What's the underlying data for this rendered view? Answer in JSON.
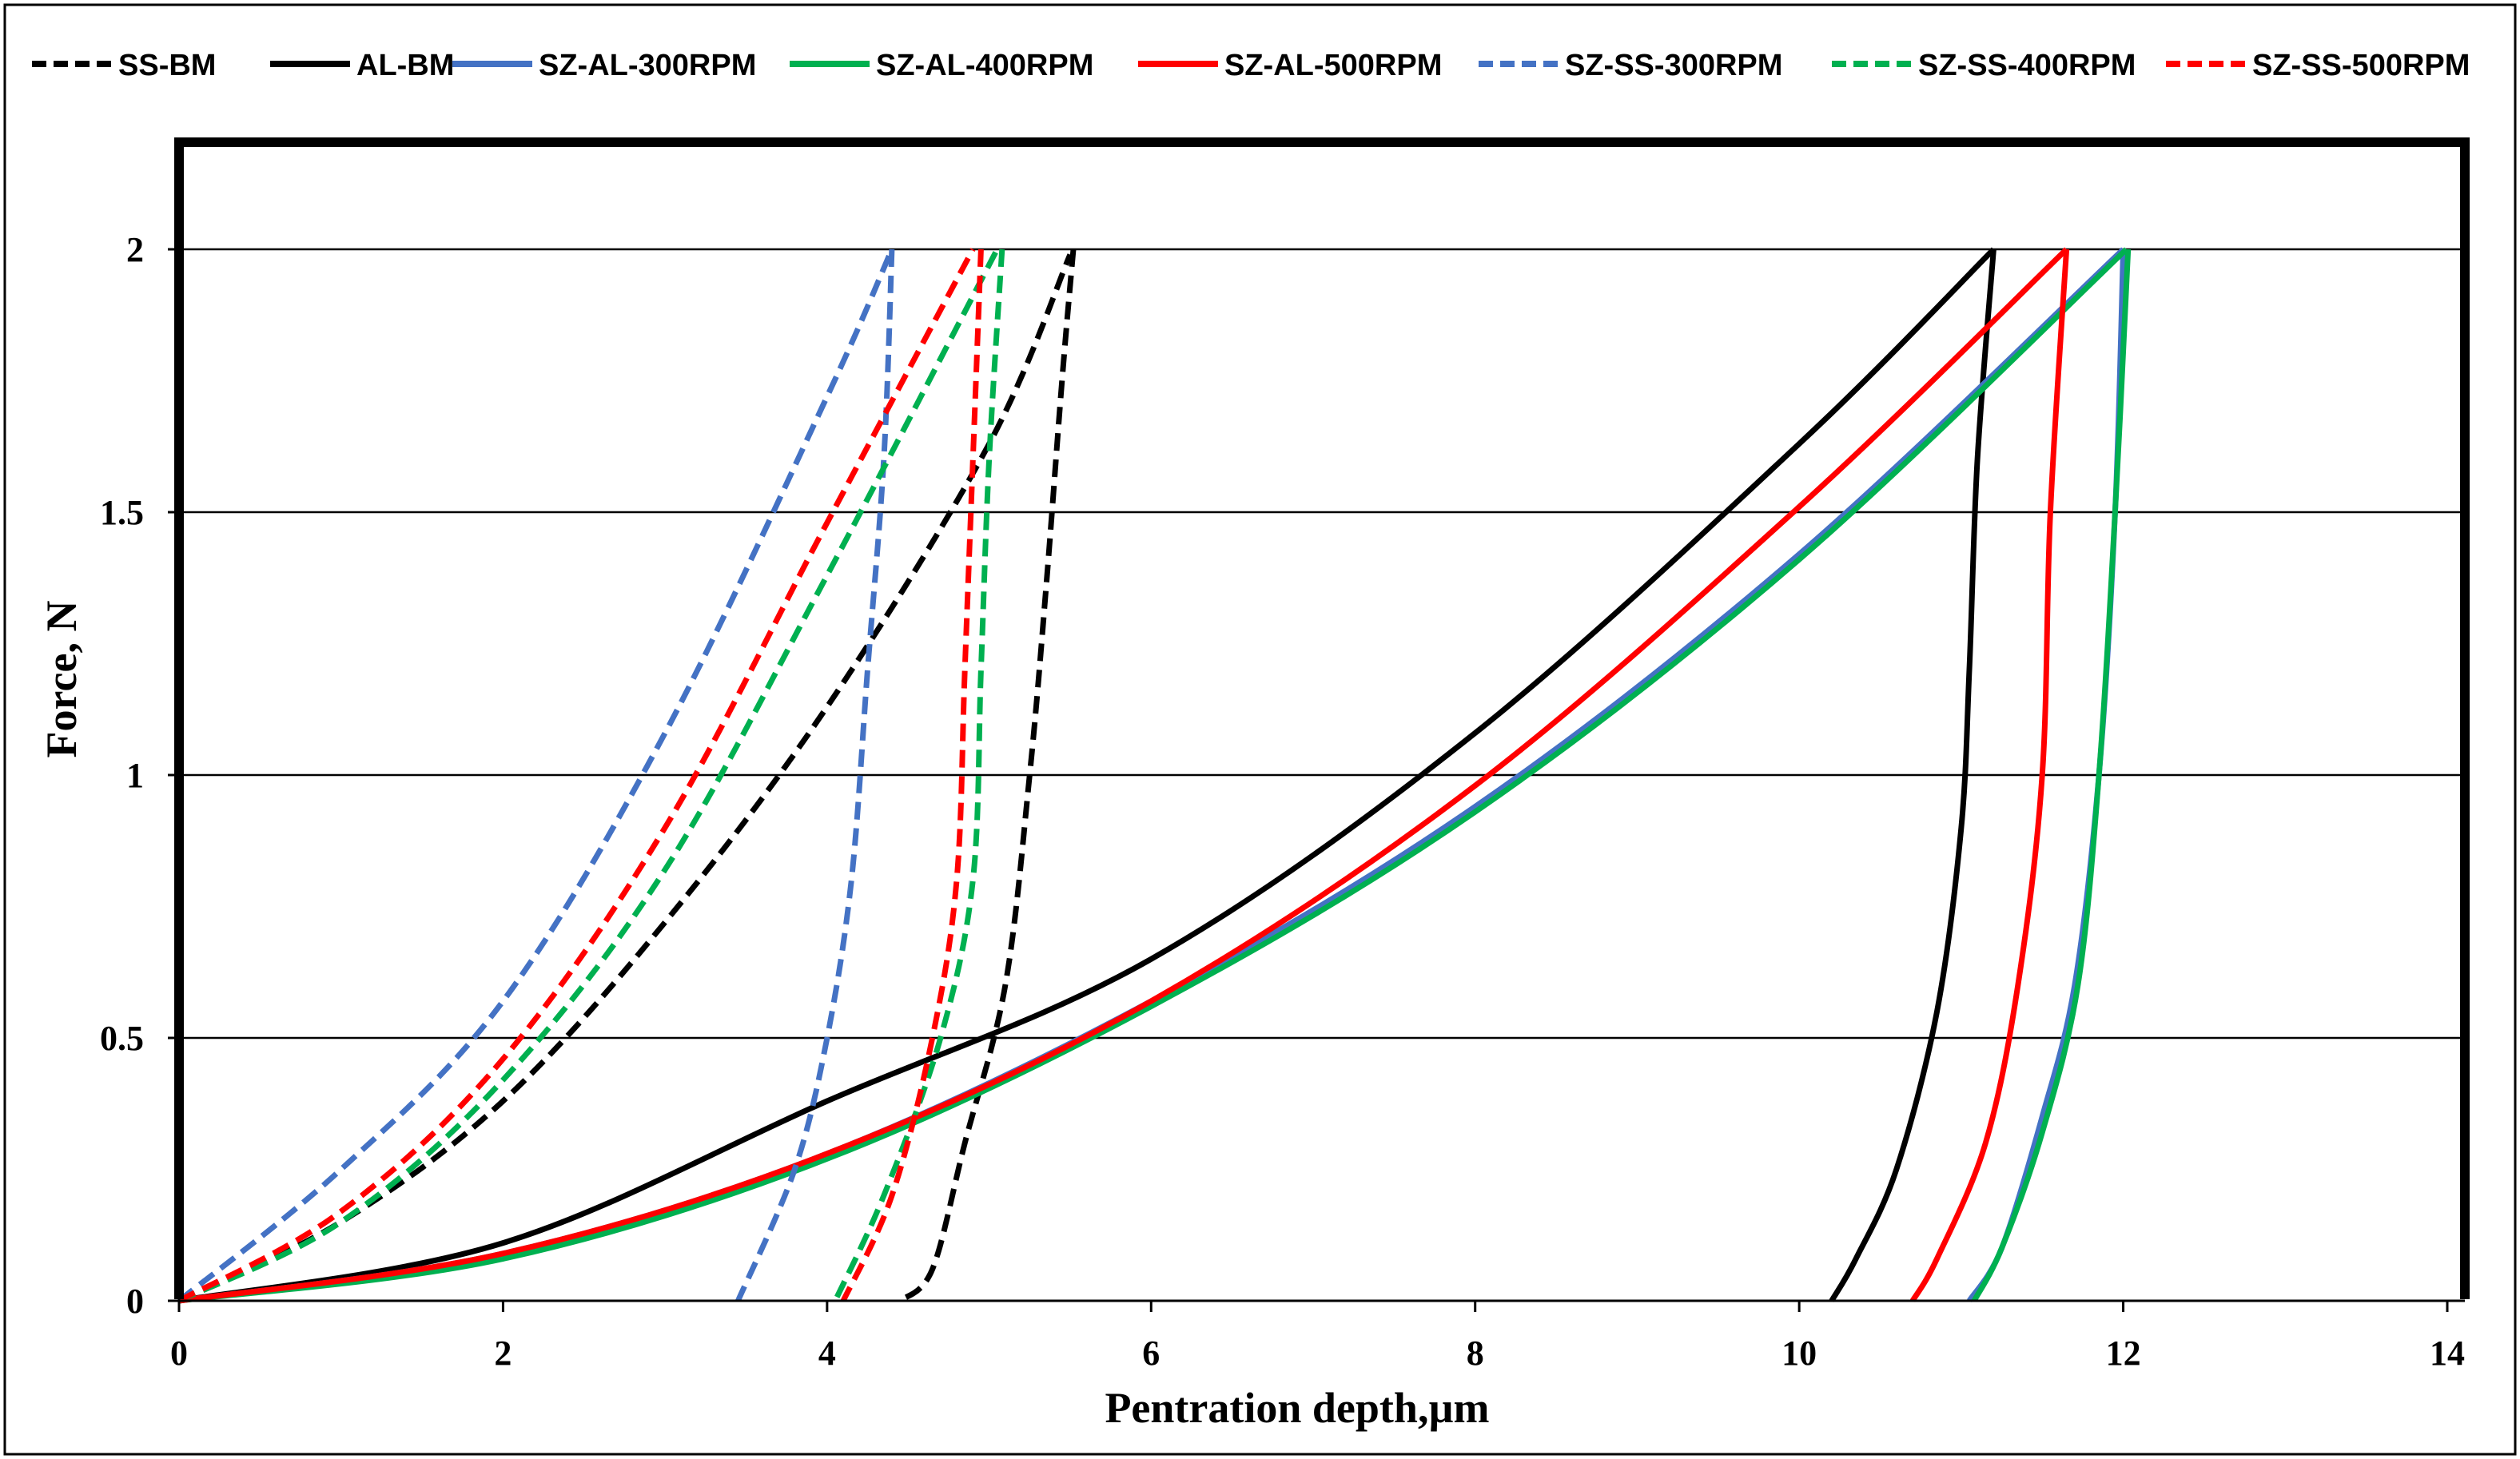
{
  "chart_data": {
    "type": "line",
    "title": "",
    "xlabel": "Pentration depth,µm",
    "ylabel": "Force, N",
    "xlim": [
      0,
      14
    ],
    "ylim": [
      0,
      2.2
    ],
    "x_ticks": [
      0,
      2,
      4,
      6,
      8,
      10,
      12,
      14
    ],
    "x_tick_labels": [
      "0",
      "2",
      "4",
      "6",
      "8",
      "10",
      "12",
      "14"
    ],
    "y_ticks": [
      0,
      0.5,
      1,
      1.5,
      2
    ],
    "y_tick_labels": [
      "0",
      "0.5",
      "1",
      "1.5",
      "2"
    ],
    "gridlines": "horizontal",
    "legend_position": "top",
    "series": [
      {
        "name": "SS-BM",
        "color": "#000000",
        "dashed": true,
        "loading": [
          [
            0,
            0
          ],
          [
            1,
            0.15
          ],
          [
            2,
            0.38
          ],
          [
            3,
            0.72
          ],
          [
            4,
            1.13
          ],
          [
            5,
            1.63
          ],
          [
            5.5,
            1.99
          ]
        ],
        "unloading": [
          [
            5.52,
            2
          ],
          [
            5.45,
            1.75
          ],
          [
            5.35,
            1.35
          ],
          [
            5.25,
            1.0
          ],
          [
            5.1,
            0.6
          ],
          [
            4.85,
            0.3
          ],
          [
            4.65,
            0.06
          ],
          [
            4.45,
            0
          ]
        ]
      },
      {
        "name": "AL-BM",
        "color": "#000000",
        "dashed": false,
        "loading": [
          [
            0,
            0
          ],
          [
            2,
            0.11
          ],
          [
            4,
            0.38
          ],
          [
            6,
            0.65
          ],
          [
            8,
            1.08
          ],
          [
            10,
            1.63
          ],
          [
            11.2,
            2.0
          ]
        ],
        "unloading": [
          [
            11.2,
            2
          ],
          [
            11.1,
            1.6
          ],
          [
            11.05,
            1.2
          ],
          [
            11.0,
            0.9
          ],
          [
            10.85,
            0.55
          ],
          [
            10.6,
            0.25
          ],
          [
            10.35,
            0.08
          ],
          [
            10.2,
            0
          ]
        ]
      },
      {
        "name": "SZ-AL-300RPM",
        "color": "#4472C4",
        "dashed": false,
        "loading": [
          [
            0,
            0
          ],
          [
            2,
            0.09
          ],
          [
            4,
            0.28
          ],
          [
            6,
            0.57
          ],
          [
            8,
            0.94
          ],
          [
            10,
            1.42
          ],
          [
            12,
            2.0
          ]
        ],
        "unloading": [
          [
            12.0,
            2
          ],
          [
            11.95,
            1.5
          ],
          [
            11.85,
            1.0
          ],
          [
            11.7,
            0.6
          ],
          [
            11.5,
            0.35
          ],
          [
            11.25,
            0.1
          ],
          [
            11.05,
            0
          ]
        ]
      },
      {
        "name": "SZ-AL-400RPM",
        "color": "#00B050",
        "dashed": false,
        "loading": [
          [
            0,
            0
          ],
          [
            2,
            0.08
          ],
          [
            4,
            0.27
          ],
          [
            6,
            0.56
          ],
          [
            8,
            0.93
          ],
          [
            10,
            1.41
          ],
          [
            12.02,
            2.0
          ]
        ],
        "unloading": [
          [
            12.03,
            2
          ],
          [
            11.95,
            1.5
          ],
          [
            11.85,
            1.0
          ],
          [
            11.72,
            0.6
          ],
          [
            11.5,
            0.32
          ],
          [
            11.25,
            0.1
          ],
          [
            11.08,
            0
          ]
        ]
      },
      {
        "name": "SZ-AL-500RPM",
        "color": "#FF0000",
        "dashed": false,
        "loading": [
          [
            0,
            0
          ],
          [
            2,
            0.09
          ],
          [
            4,
            0.28
          ],
          [
            6,
            0.57
          ],
          [
            8,
            0.98
          ],
          [
            10,
            1.51
          ],
          [
            11.65,
            2.0
          ]
        ],
        "unloading": [
          [
            11.65,
            2
          ],
          [
            11.55,
            1.5
          ],
          [
            11.5,
            1.0
          ],
          [
            11.35,
            0.6
          ],
          [
            11.15,
            0.3
          ],
          [
            10.85,
            0.08
          ],
          [
            10.7,
            0
          ]
        ]
      },
      {
        "name": "SZ-SS-300RPM",
        "color": "#4472C4",
        "dashed": true,
        "loading": [
          [
            0,
            0
          ],
          [
            1,
            0.25
          ],
          [
            2,
            0.57
          ],
          [
            3,
            1.08
          ],
          [
            4,
            1.72
          ],
          [
            4.4,
            2.0
          ]
        ],
        "unloading": [
          [
            4.4,
            2
          ],
          [
            4.35,
            1.6
          ],
          [
            4.25,
            1.2
          ],
          [
            4.15,
            0.8
          ],
          [
            4.0,
            0.5
          ],
          [
            3.8,
            0.25
          ],
          [
            3.45,
            0
          ]
        ]
      },
      {
        "name": "SZ-SS-400RPM",
        "color": "#00B050",
        "dashed": true,
        "loading": [
          [
            0,
            0
          ],
          [
            1,
            0.15
          ],
          [
            2,
            0.42
          ],
          [
            3,
            0.82
          ],
          [
            4,
            1.38
          ],
          [
            5.05,
            2.0
          ]
        ],
        "unloading": [
          [
            5.08,
            2
          ],
          [
            5.0,
            1.6
          ],
          [
            4.95,
            1.2
          ],
          [
            4.9,
            0.8
          ],
          [
            4.7,
            0.5
          ],
          [
            4.35,
            0.2
          ],
          [
            4.05,
            0
          ]
        ]
      },
      {
        "name": "SZ-SS-500RPM",
        "color": "#FF0000",
        "dashed": true,
        "loading": [
          [
            0,
            0
          ],
          [
            1,
            0.17
          ],
          [
            2,
            0.46
          ],
          [
            3,
            0.9
          ],
          [
            4,
            1.48
          ],
          [
            4.9,
            2.0
          ]
        ],
        "unloading": [
          [
            4.95,
            2
          ],
          [
            4.9,
            1.6
          ],
          [
            4.85,
            1.2
          ],
          [
            4.8,
            0.8
          ],
          [
            4.65,
            0.5
          ],
          [
            4.4,
            0.2
          ],
          [
            4.1,
            0
          ]
        ]
      }
    ]
  }
}
